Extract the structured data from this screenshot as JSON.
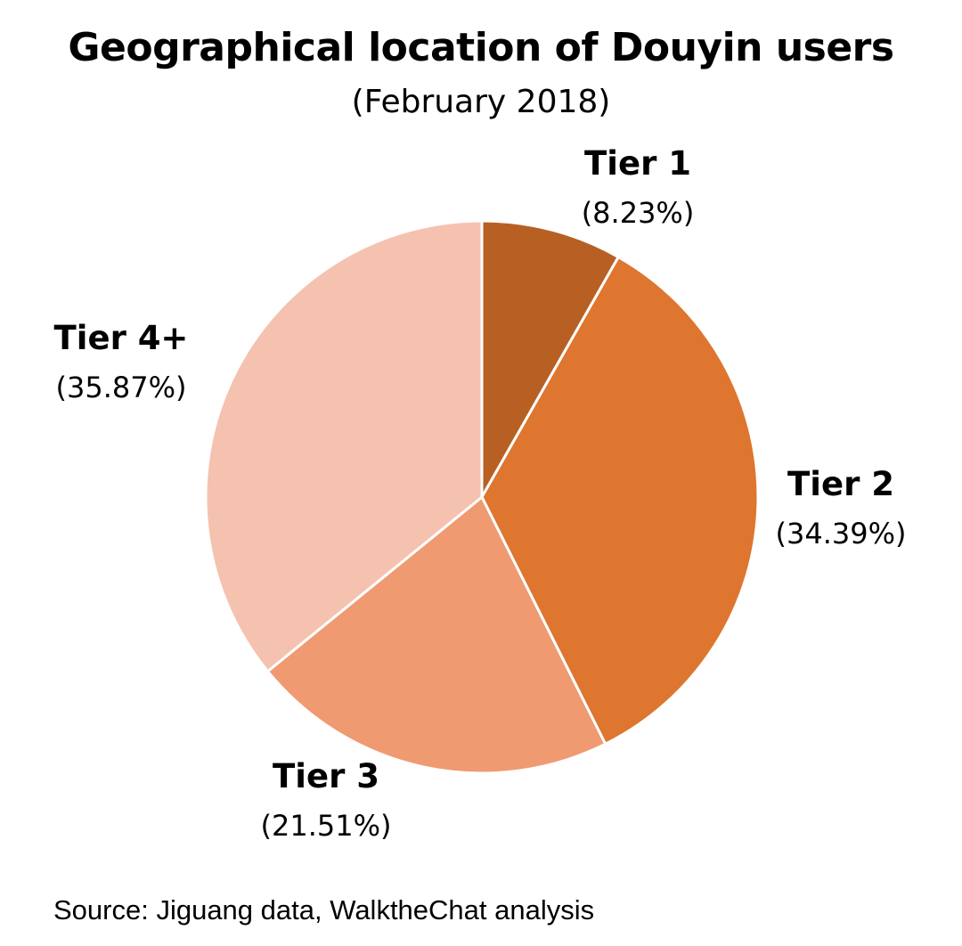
{
  "chart_data": {
    "type": "pie",
    "title": "Geographical location of Douyin users",
    "subtitle": "(February 2018)",
    "slices": [
      {
        "label": "Tier 1",
        "value": 8.23,
        "value_label": "(8.23%)",
        "color": "#b86024"
      },
      {
        "label": "Tier 2",
        "value": 34.39,
        "value_label": "(34.39%)",
        "color": "#de762f"
      },
      {
        "label": "Tier 3",
        "value": 21.51,
        "value_label": "(21.51%)",
        "color": "#f09a72"
      },
      {
        "label": "Tier 4+",
        "value": 35.87,
        "value_label": "(35.87%)",
        "color": "#f5c2b0"
      }
    ],
    "start_angle": "top",
    "direction": "clockwise",
    "legend": "none"
  },
  "source": "Source: Jiguang data, WalktheChat analysis"
}
